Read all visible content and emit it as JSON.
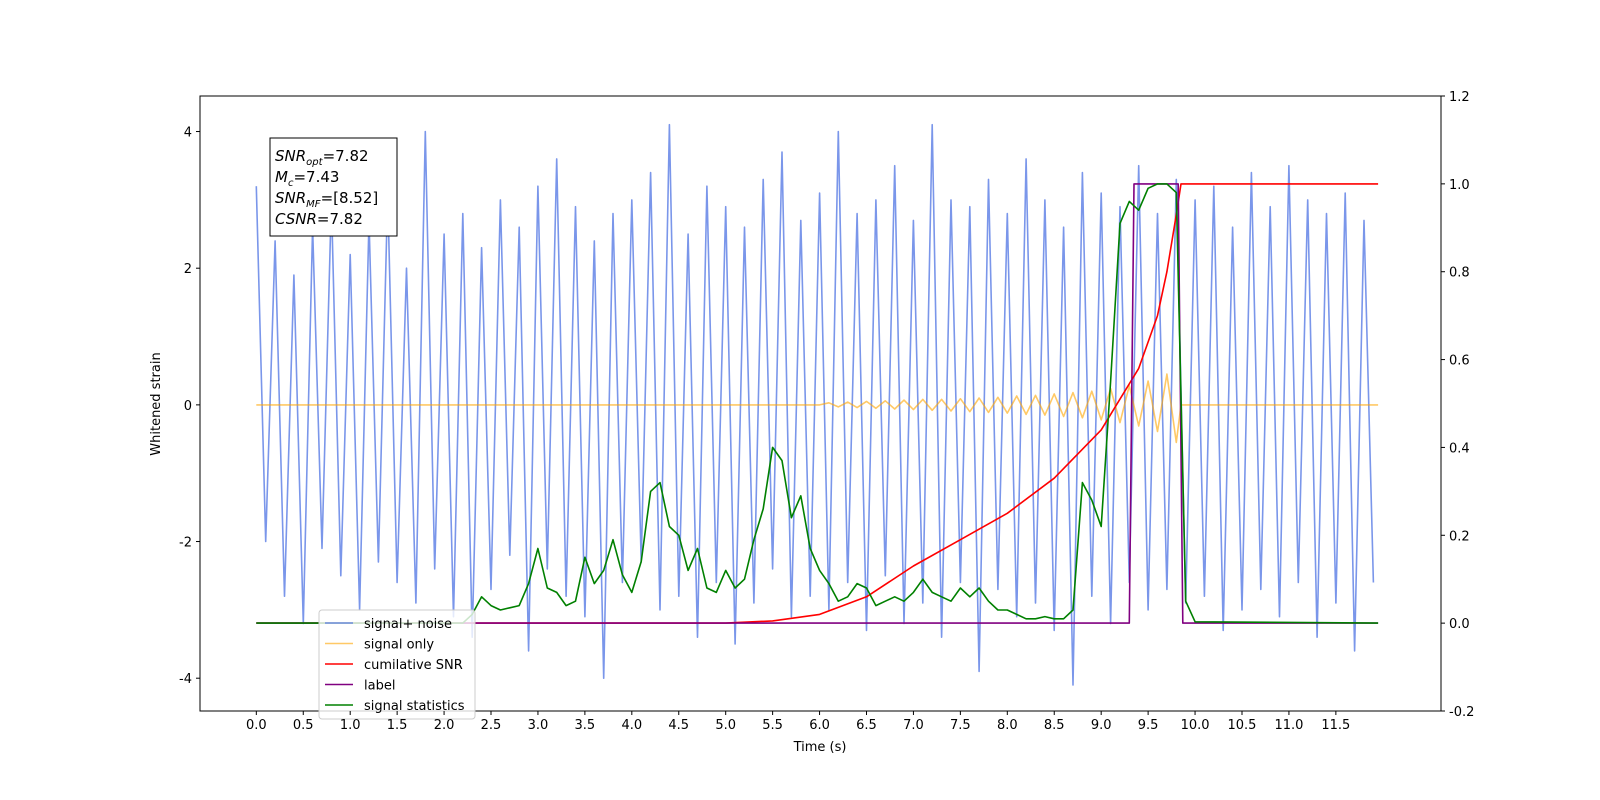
{
  "chart_data": {
    "type": "line",
    "xlabel": "Time (s)",
    "ylabel": "Whitened strain",
    "xlim": [
      -0.6,
      12.62
    ],
    "ylim": [
      -4.48,
      4.52
    ],
    "y2lim": [
      -0.2,
      1.2
    ],
    "xticks": [
      {
        "value": 0,
        "label": "0.0"
      },
      0.5,
      {
        "value": 1,
        "label": "1.0"
      },
      1.5,
      {
        "value": 2,
        "label": "2.0"
      },
      2.5,
      {
        "value": 3,
        "label": "3.0"
      },
      3.5,
      {
        "value": 4,
        "label": "4.0"
      },
      4.5,
      {
        "value": 5,
        "label": "5.0"
      },
      5.5,
      {
        "value": 6,
        "label": "6.0"
      },
      6.5,
      {
        "value": 7,
        "label": "7.0"
      },
      7.5,
      {
        "value": 8,
        "label": "8.0"
      },
      8.5,
      {
        "value": 9,
        "label": "9.0"
      },
      9.5,
      {
        "value": 10,
        "label": "10.0"
      },
      10.5,
      {
        "value": 11,
        "label": "11.0"
      },
      11.5
    ],
    "yticks": [
      -4,
      -2,
      0,
      2,
      4
    ],
    "y2ticks": [
      -0.2,
      {
        "value": 0,
        "label": "0.0"
      },
      0.2,
      0.4,
      0.6,
      0.8,
      {
        "value": 1,
        "label": "1.0"
      },
      1.2
    ],
    "legend": "lower left",
    "annotation": [
      {
        "text": "SNR",
        "sub": "opt",
        "value": "=7.82"
      },
      {
        "text": "M",
        "sub": "c",
        "value": "=7.43"
      },
      {
        "text": "SNR",
        "sub": "MF",
        "value": "=[8.52]"
      },
      {
        "text": "CSNR",
        "value": "=7.82"
      }
    ],
    "series": [
      {
        "name": "signal+ noise",
        "color": "#4169e1",
        "opacity": 0.7,
        "axis": "y",
        "x": [
          0,
          0.1,
          0.2,
          0.3,
          0.4,
          0.5,
          0.6,
          0.7,
          0.8,
          0.9,
          1,
          1.1,
          1.2,
          1.3,
          1.4,
          1.5,
          1.6,
          1.7,
          1.8,
          1.9,
          2,
          2.1,
          2.2,
          2.3,
          2.4,
          2.5,
          2.6,
          2.7,
          2.8,
          2.9,
          3,
          3.1,
          3.2,
          3.3,
          3.4,
          3.5,
          3.6,
          3.7,
          3.8,
          3.9,
          4,
          4.1,
          4.2,
          4.3,
          4.4,
          4.5,
          4.6,
          4.7,
          4.8,
          4.9,
          5,
          5.1,
          5.2,
          5.3,
          5.4,
          5.5,
          5.6,
          5.7,
          5.8,
          5.9,
          6,
          6.1,
          6.2,
          6.3,
          6.4,
          6.5,
          6.6,
          6.7,
          6.8,
          6.9,
          7,
          7.1,
          7.2,
          7.3,
          7.4,
          7.5,
          7.6,
          7.7,
          7.8,
          7.9,
          8,
          8.1,
          8.2,
          8.3,
          8.4,
          8.5,
          8.6,
          8.7,
          8.8,
          8.9,
          9,
          9.1,
          9.2,
          9.3,
          9.4,
          9.5,
          9.6,
          9.7,
          9.8,
          9.9,
          10,
          10.1,
          10.2,
          10.3,
          10.4,
          10.5,
          10.6,
          10.7,
          10.8,
          10.9,
          11,
          11.1,
          11.2,
          11.3,
          11.4,
          11.5,
          11.6,
          11.7,
          11.8,
          11.9
        ],
        "values": [
          3.2,
          -2.0,
          2.4,
          -2.8,
          1.9,
          -3.2,
          2.6,
          -2.1,
          3.0,
          -2.5,
          2.2,
          -3.0,
          2.7,
          -2.3,
          3.1,
          -2.6,
          2.0,
          -2.9,
          4.0,
          -2.4,
          2.5,
          -3.1,
          2.8,
          -3.4,
          2.3,
          -2.7,
          3.0,
          -2.2,
          2.6,
          -3.6,
          3.2,
          -2.4,
          3.6,
          -2.8,
          2.9,
          -3.1,
          2.4,
          -4.0,
          2.8,
          -2.6,
          3.0,
          -2.3,
          3.4,
          -3.0,
          4.1,
          -2.8,
          2.5,
          -3.4,
          3.2,
          -2.6,
          2.9,
          -3.5,
          2.6,
          -2.9,
          3.3,
          -2.4,
          3.7,
          -3.1,
          2.7,
          -2.8,
          3.1,
          -3.0,
          4.0,
          -2.6,
          2.8,
          -3.3,
          3.0,
          -2.5,
          3.5,
          -3.2,
          2.7,
          -2.9,
          4.1,
          -3.4,
          3.0,
          -2.6,
          2.9,
          -3.9,
          3.3,
          -2.7,
          2.8,
          -3.1,
          3.6,
          -2.9,
          3.0,
          -3.3,
          2.6,
          -4.1,
          3.4,
          -2.8,
          3.1,
          -3.2,
          2.9,
          -2.6,
          3.5,
          -3.0,
          2.8,
          -2.7,
          3.3,
          -2.9,
          3.0,
          -2.8,
          3.2,
          -3.3,
          2.6,
          -3.0,
          3.4,
          -2.7,
          2.9,
          -3.1,
          3.5,
          -2.6,
          3.0,
          -3.4,
          2.8,
          -2.9,
          3.1,
          -3.6,
          2.7,
          -2.6
        ]
      },
      {
        "name": "signal only",
        "color": "#ffa500",
        "opacity": 0.6,
        "axis": "y",
        "x": [
          0,
          6.0,
          6.1,
          6.2,
          6.3,
          6.4,
          6.5,
          6.6,
          6.7,
          6.8,
          6.9,
          7.0,
          7.1,
          7.2,
          7.3,
          7.4,
          7.5,
          7.6,
          7.7,
          7.8,
          7.9,
          8.0,
          8.1,
          8.2,
          8.3,
          8.4,
          8.5,
          8.6,
          8.7,
          8.8,
          8.9,
          9.0,
          9.1,
          9.2,
          9.3,
          9.4,
          9.5,
          9.6,
          9.7,
          9.8,
          9.85,
          11.95
        ],
        "values": [
          0,
          0,
          0.03,
          -0.03,
          0.04,
          -0.04,
          0.05,
          -0.05,
          0.06,
          -0.06,
          0.07,
          -0.07,
          0.08,
          -0.08,
          0.08,
          -0.09,
          0.09,
          -0.1,
          0.1,
          -0.11,
          0.11,
          -0.12,
          0.13,
          -0.14,
          0.14,
          -0.15,
          0.16,
          -0.17,
          0.18,
          -0.19,
          0.2,
          -0.22,
          0.24,
          -0.26,
          0.28,
          -0.31,
          0.35,
          -0.39,
          0.45,
          -0.55,
          0,
          0
        ]
      },
      {
        "name": "cumilative SNR",
        "color": "#ff0000",
        "opacity": 1,
        "axis": "y2",
        "x": [
          0,
          5.0,
          5.5,
          6.0,
          6.5,
          7.0,
          7.5,
          8.0,
          8.5,
          9.0,
          9.2,
          9.4,
          9.6,
          9.7,
          9.8,
          9.85,
          11.95
        ],
        "values": [
          0,
          0,
          0.005,
          0.02,
          0.06,
          0.13,
          0.19,
          0.25,
          0.33,
          0.44,
          0.51,
          0.58,
          0.7,
          0.8,
          0.93,
          1.0,
          1.0
        ]
      },
      {
        "name": "label",
        "color": "#800080",
        "opacity": 1,
        "axis": "y2",
        "x": [
          0,
          9.3,
          9.35,
          9.82,
          9.87,
          11.95
        ],
        "values": [
          0,
          0,
          1,
          1,
          0,
          0
        ]
      },
      {
        "name": "signal statistics",
        "color": "#008000",
        "opacity": 1,
        "axis": "y2",
        "x": [
          0,
          2.2,
          2.3,
          2.4,
          2.5,
          2.6,
          2.7,
          2.8,
          2.9,
          3.0,
          3.1,
          3.2,
          3.3,
          3.4,
          3.5,
          3.6,
          3.7,
          3.8,
          3.9,
          4.0,
          4.1,
          4.2,
          4.3,
          4.4,
          4.5,
          4.6,
          4.7,
          4.8,
          4.9,
          5.0,
          5.1,
          5.2,
          5.3,
          5.4,
          5.5,
          5.6,
          5.7,
          5.8,
          5.9,
          6.0,
          6.1,
          6.2,
          6.3,
          6.4,
          6.5,
          6.6,
          6.7,
          6.8,
          6.9,
          7.0,
          7.1,
          7.2,
          7.3,
          7.4,
          7.5,
          7.6,
          7.7,
          7.8,
          7.9,
          8.0,
          8.1,
          8.2,
          8.3,
          8.4,
          8.5,
          8.6,
          8.7,
          8.8,
          8.9,
          9.0,
          9.1,
          9.2,
          9.3,
          9.4,
          9.5,
          9.6,
          9.7,
          9.8,
          9.9,
          10.0,
          11.95
        ],
        "values": [
          0,
          0,
          0.02,
          0.06,
          0.04,
          0.03,
          0.035,
          0.04,
          0.09,
          0.17,
          0.08,
          0.07,
          0.04,
          0.05,
          0.15,
          0.09,
          0.12,
          0.19,
          0.11,
          0.07,
          0.14,
          0.3,
          0.32,
          0.22,
          0.2,
          0.12,
          0.17,
          0.08,
          0.07,
          0.12,
          0.08,
          0.1,
          0.19,
          0.26,
          0.4,
          0.37,
          0.24,
          0.29,
          0.17,
          0.12,
          0.09,
          0.05,
          0.06,
          0.09,
          0.08,
          0.04,
          0.05,
          0.06,
          0.05,
          0.07,
          0.1,
          0.07,
          0.06,
          0.05,
          0.08,
          0.06,
          0.08,
          0.05,
          0.03,
          0.03,
          0.02,
          0.01,
          0.01,
          0.015,
          0.01,
          0.01,
          0.03,
          0.32,
          0.28,
          0.22,
          0.55,
          0.91,
          0.96,
          0.94,
          0.99,
          1.0,
          1.0,
          0.98,
          0.05,
          0.003,
          0
        ]
      }
    ]
  }
}
